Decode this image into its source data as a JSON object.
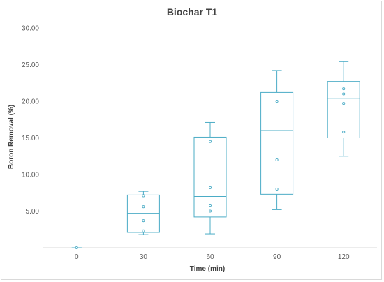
{
  "chart_data": {
    "type": "box",
    "title": "Biochar T1",
    "xlabel": "Time (min)",
    "ylabel": "Boron Removal (%)",
    "ylim": [
      0,
      30
    ],
    "y_ticks": [
      "-",
      "5.00",
      "10.00",
      "15.00",
      "20.00",
      "25.00",
      "30.00"
    ],
    "y_tick_values": [
      0,
      5,
      10,
      15,
      20,
      25,
      30
    ],
    "categories": [
      "0",
      "30",
      "60",
      "90",
      "120"
    ],
    "grid": false,
    "legend": "none",
    "color": "#4bacc6",
    "boxes": [
      {
        "category": "0",
        "min": 0,
        "q1": 0,
        "median": 0,
        "q3": 0,
        "max": 0,
        "points": [
          0
        ]
      },
      {
        "category": "30",
        "min": 1.8,
        "q1": 2.1,
        "median": 4.7,
        "q3": 7.2,
        "max": 7.7,
        "points": [
          2.3,
          3.7,
          5.6,
          7.1
        ]
      },
      {
        "category": "60",
        "min": 1.9,
        "q1": 4.2,
        "median": 7.0,
        "q3": 15.1,
        "max": 17.1,
        "points": [
          5.0,
          5.8,
          8.2,
          14.5
        ]
      },
      {
        "category": "90",
        "min": 5.2,
        "q1": 7.3,
        "median": 16.0,
        "q3": 21.2,
        "max": 24.2,
        "points": [
          8.0,
          12.0,
          20.0
        ]
      },
      {
        "category": "120",
        "min": 12.5,
        "q1": 15.0,
        "median": 20.4,
        "q3": 22.7,
        "max": 25.4,
        "points": [
          15.8,
          19.7,
          21.0,
          21.7
        ]
      }
    ]
  }
}
